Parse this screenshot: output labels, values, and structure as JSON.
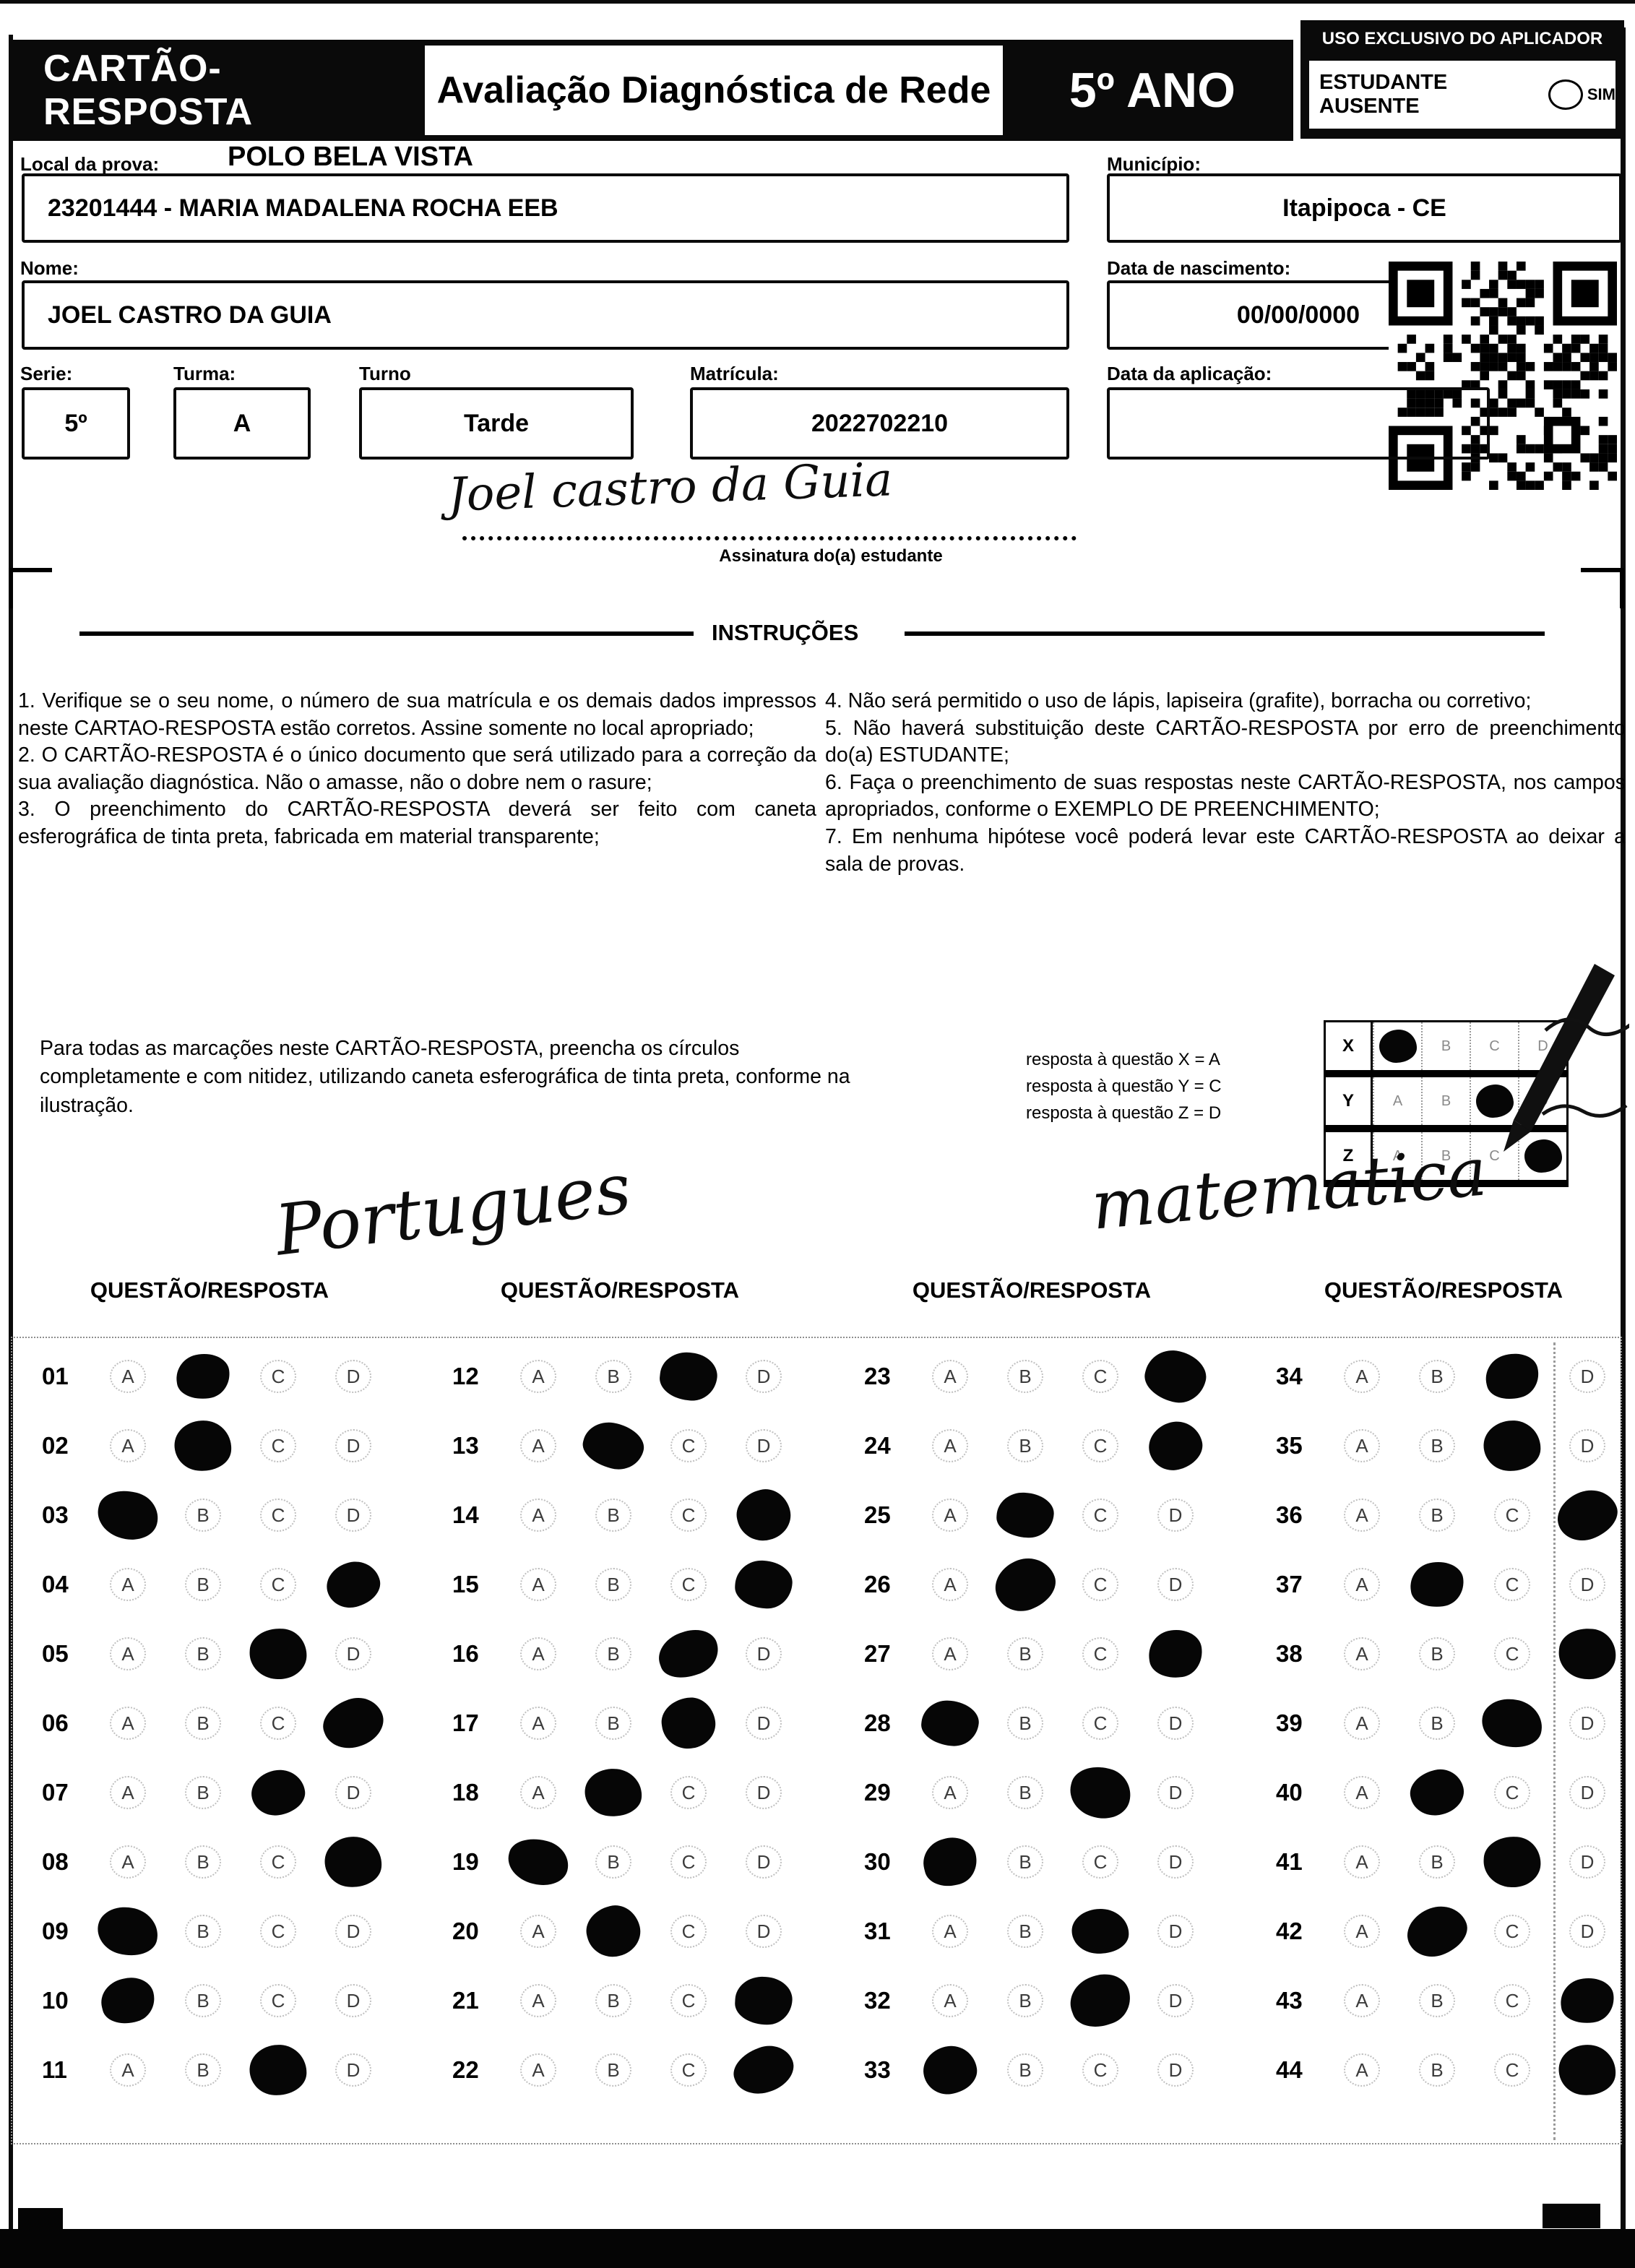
{
  "header": {
    "title": "CARTÃO-RESPOSTA",
    "subtitle": "Avaliação Diagnóstica de Rede",
    "grade": "5º ANO",
    "examiner_box_title": "USO EXCLUSIVO DO APLICADOR",
    "absent_label": "ESTUDANTE AUSENTE",
    "absent_option": "SIM"
  },
  "form": {
    "local_label": "Local da prova:",
    "local_value": "POLO BELA VISTA",
    "school_value": "23201444 - MARIA MADALENA ROCHA EEB",
    "municipio_label": "Município:",
    "municipio_value": "Itapipoca - CE",
    "nome_label": "Nome:",
    "nome_value": "JOEL CASTRO DA GUIA",
    "nascimento_label": "Data de nascimento:",
    "nascimento_value": "00/00/0000",
    "serie_label": "Serie:",
    "serie_value": "5º",
    "turma_label": "Turma:",
    "turma_value": "A",
    "turno_label": "Turno",
    "turno_value": "Tarde",
    "matricula_label": "Matrícula:",
    "matricula_value": "2022702210",
    "aplicacao_label": "Data da aplicação:",
    "aplicacao_value": "",
    "signature_text": "Joel castro da Guia",
    "signature_label": "Assinatura do(a) estudante"
  },
  "instructions": {
    "title": "INSTRUÇÕES",
    "left": [
      "1. Verifique se o seu nome, o número de sua matrícula e os demais dados impressos neste CARTAO-RESPOSTA estão corretos. Assine somente no local apropriado;",
      "2. O CARTÃO-RESPOSTA é o único documento que será utilizado para a correção da sua avaliação diagnóstica. Não o amasse, não o dobre nem o rasure;",
      "3. O preenchimento do CARTÃO-RESPOSTA deverá ser feito com caneta esferográfica de tinta preta, fabricada em material transparente;"
    ],
    "right": [
      "4. Não será permitido o uso de lápis, lapiseira (grafite), borracha ou corretivo;",
      "5. Não haverá substituição deste CARTÃO-RESPOSTA por erro de preenchimento do(a) ESTUDANTE;",
      "6. Faça o preenchimento de suas respostas neste CARTÃO-RESPOSTA, nos campos apropriados, conforme o EXEMPLO DE PREENCHIMENTO;",
      "7. Em nenhuma hipótese você poderá levar este CARTÃO-RESPOSTA ao deixar a sala de provas."
    ]
  },
  "example": {
    "note": "Para todas as marcações neste CARTÃO-RESPOSTA, preencha os círculos completamente e com nitidez, utilizando caneta esferográfica de tinta preta, conforme na ilustração.",
    "legend": [
      "resposta à questão X = A",
      "resposta à questão Y = C",
      "resposta à questão Z = D"
    ],
    "options": [
      "A",
      "B",
      "C",
      "D"
    ],
    "rows": [
      {
        "label": "X",
        "answer": "A"
      },
      {
        "label": "Y",
        "answer": "C"
      },
      {
        "label": "Z",
        "answer": "D"
      }
    ]
  },
  "subjects": {
    "left": "Portugues",
    "right": "matematica"
  },
  "answer_section": {
    "column_header": "QUESTÃO/RESPOSTA",
    "options": [
      "A",
      "B",
      "C",
      "D"
    ],
    "columns": [
      {
        "questions": [
          {
            "n": "01",
            "a": "B"
          },
          {
            "n": "02",
            "a": "B"
          },
          {
            "n": "03",
            "a": "A"
          },
          {
            "n": "04",
            "a": "D"
          },
          {
            "n": "05",
            "a": "C"
          },
          {
            "n": "06",
            "a": "D"
          },
          {
            "n": "07",
            "a": "C"
          },
          {
            "n": "08",
            "a": "D"
          },
          {
            "n": "09",
            "a": "A"
          },
          {
            "n": "10",
            "a": "A"
          },
          {
            "n": "11",
            "a": "C"
          }
        ]
      },
      {
        "questions": [
          {
            "n": "12",
            "a": "C"
          },
          {
            "n": "13",
            "a": "B"
          },
          {
            "n": "14",
            "a": "D"
          },
          {
            "n": "15",
            "a": "D"
          },
          {
            "n": "16",
            "a": "C"
          },
          {
            "n": "17",
            "a": "C"
          },
          {
            "n": "18",
            "a": "B"
          },
          {
            "n": "19",
            "a": "A"
          },
          {
            "n": "20",
            "a": "B"
          },
          {
            "n": "21",
            "a": "D"
          },
          {
            "n": "22",
            "a": "D"
          }
        ]
      },
      {
        "questions": [
          {
            "n": "23",
            "a": "D"
          },
          {
            "n": "24",
            "a": "D"
          },
          {
            "n": "25",
            "a": "B"
          },
          {
            "n": "26",
            "a": "B"
          },
          {
            "n": "27",
            "a": "D"
          },
          {
            "n": "28",
            "a": "A"
          },
          {
            "n": "29",
            "a": "C"
          },
          {
            "n": "30",
            "a": "A"
          },
          {
            "n": "31",
            "a": "C"
          },
          {
            "n": "32",
            "a": "C"
          },
          {
            "n": "33",
            "a": "A"
          }
        ]
      },
      {
        "questions": [
          {
            "n": "34",
            "a": "C"
          },
          {
            "n": "35",
            "a": "C"
          },
          {
            "n": "36",
            "a": "D"
          },
          {
            "n": "37",
            "a": "B"
          },
          {
            "n": "38",
            "a": "D"
          },
          {
            "n": "39",
            "a": "C"
          },
          {
            "n": "40",
            "a": "B"
          },
          {
            "n": "41",
            "a": "C"
          },
          {
            "n": "42",
            "a": "B"
          },
          {
            "n": "43",
            "a": "D"
          },
          {
            "n": "44",
            "a": "D"
          }
        ]
      }
    ]
  }
}
